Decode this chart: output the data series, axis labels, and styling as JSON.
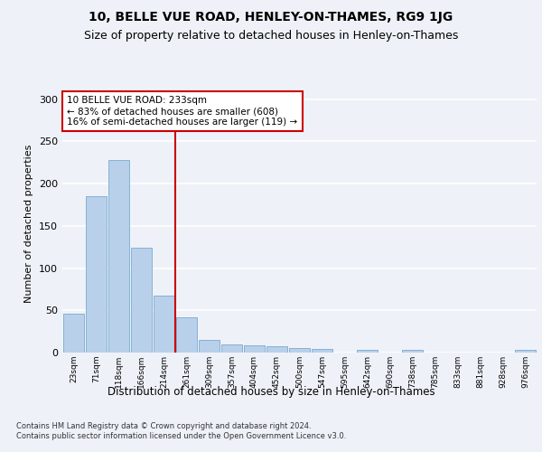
{
  "title1": "10, BELLE VUE ROAD, HENLEY-ON-THAMES, RG9 1JG",
  "title2": "Size of property relative to detached houses in Henley-on-Thames",
  "xlabel": "Distribution of detached houses by size in Henley-on-Thames",
  "ylabel": "Number of detached properties",
  "categories": [
    "23sqm",
    "71sqm",
    "118sqm",
    "166sqm",
    "214sqm",
    "261sqm",
    "309sqm",
    "357sqm",
    "404sqm",
    "452sqm",
    "500sqm",
    "547sqm",
    "595sqm",
    "642sqm",
    "690sqm",
    "738sqm",
    "785sqm",
    "833sqm",
    "881sqm",
    "928sqm",
    "976sqm"
  ],
  "values": [
    46,
    185,
    228,
    124,
    67,
    42,
    15,
    10,
    9,
    8,
    5,
    4,
    0,
    3,
    0,
    3,
    0,
    0,
    0,
    0,
    3
  ],
  "bar_color": "#b8d0ea",
  "bar_edge_color": "#7aaad0",
  "property_line_x": 4.5,
  "annotation_text": "10 BELLE VUE ROAD: 233sqm\n← 83% of detached houses are smaller (608)\n16% of semi-detached houses are larger (119) →",
  "annotation_box_color": "#ffffff",
  "annotation_box_edge": "#cc0000",
  "vline_color": "#cc0000",
  "ylim": [
    0,
    305
  ],
  "yticks": [
    0,
    50,
    100,
    150,
    200,
    250,
    300
  ],
  "footer": "Contains HM Land Registry data © Crown copyright and database right 2024.\nContains public sector information licensed under the Open Government Licence v3.0.",
  "bg_color": "#eef2f8",
  "grid_color": "#ffffff",
  "title1_fontsize": 10,
  "title2_fontsize": 9,
  "xlabel_fontsize": 8.5,
  "ylabel_fontsize": 8
}
